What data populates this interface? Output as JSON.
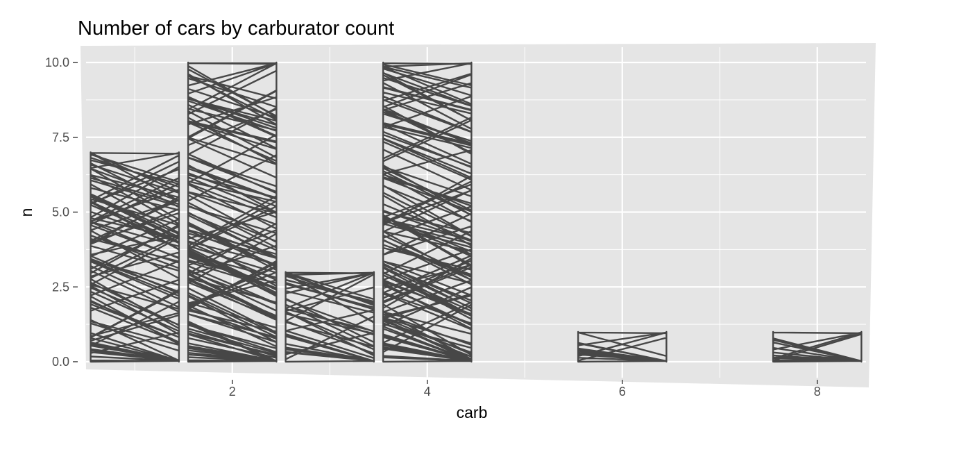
{
  "chart_data": {
    "type": "bar",
    "title": "Number of cars by carburator count",
    "xlabel": "carb",
    "ylabel": "n",
    "x": [
      1,
      2,
      3,
      4,
      6,
      8
    ],
    "values": [
      7,
      10,
      3,
      10,
      1,
      1
    ],
    "x_ticks": [
      "2",
      "4",
      "6",
      "8"
    ],
    "y_ticks": [
      "0.0",
      "2.5",
      "5.0",
      "7.5",
      "10.0"
    ],
    "xlim": [
      0.5,
      8.5
    ],
    "ylim": [
      0,
      10
    ],
    "grid": true,
    "legend": "none",
    "colors": {
      "panel": "#e5e5e5",
      "grid": "#ffffff",
      "bar": "#474747"
    }
  }
}
